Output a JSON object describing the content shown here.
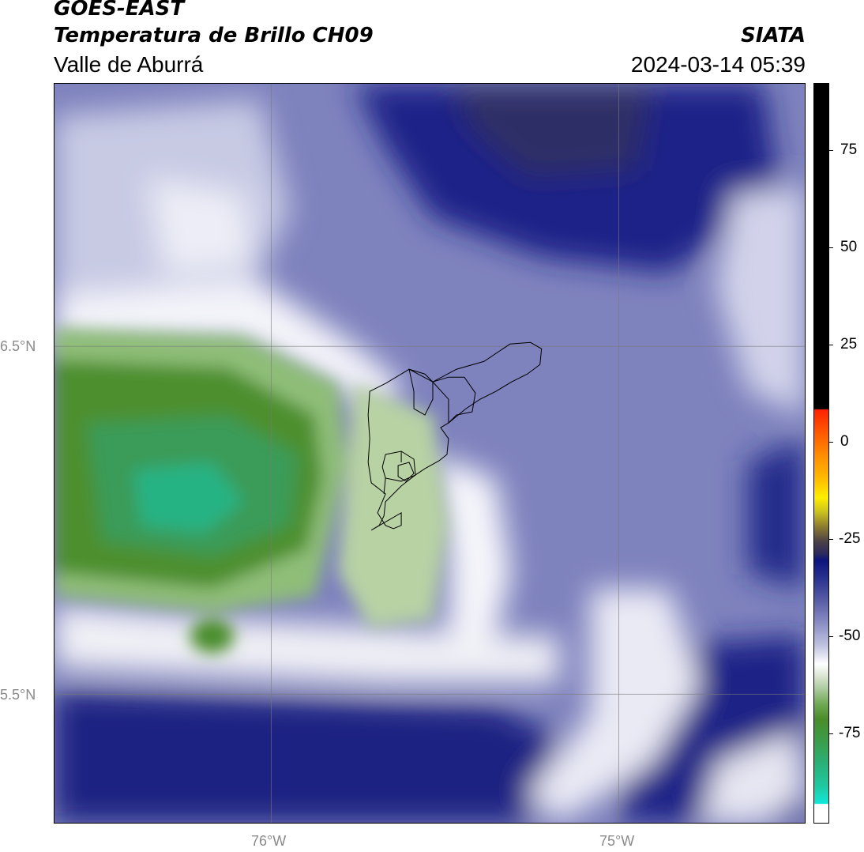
{
  "header": {
    "title_line1": "GOES-EAST",
    "title_line2": "Temperatura de Brillo CH09",
    "region": "Valle de Aburrá",
    "organization": "SIATA",
    "timestamp": "2024-03-14 05:39"
  },
  "map": {
    "lat_labels": [
      "6.5°N",
      "5.5°N"
    ],
    "lon_labels": [
      "76°W",
      "75°W"
    ]
  },
  "colorbar": {
    "tick_labels": [
      "75",
      "50",
      "25",
      "0",
      "-25",
      "-50",
      "-75"
    ],
    "colors": {
      "top_black": "#000000",
      "red": "#ff2200",
      "orange": "#ff8800",
      "yellow": "#ffee00",
      "olive": "#8a7a30",
      "dark_navy": "#2e2c5a",
      "navy": "#0d147f",
      "lavender": "#a8aad0",
      "white": "#ffffff",
      "green": "#4a8c2a",
      "teal": "#20c8a0",
      "cyan": "#10e8d8"
    }
  }
}
